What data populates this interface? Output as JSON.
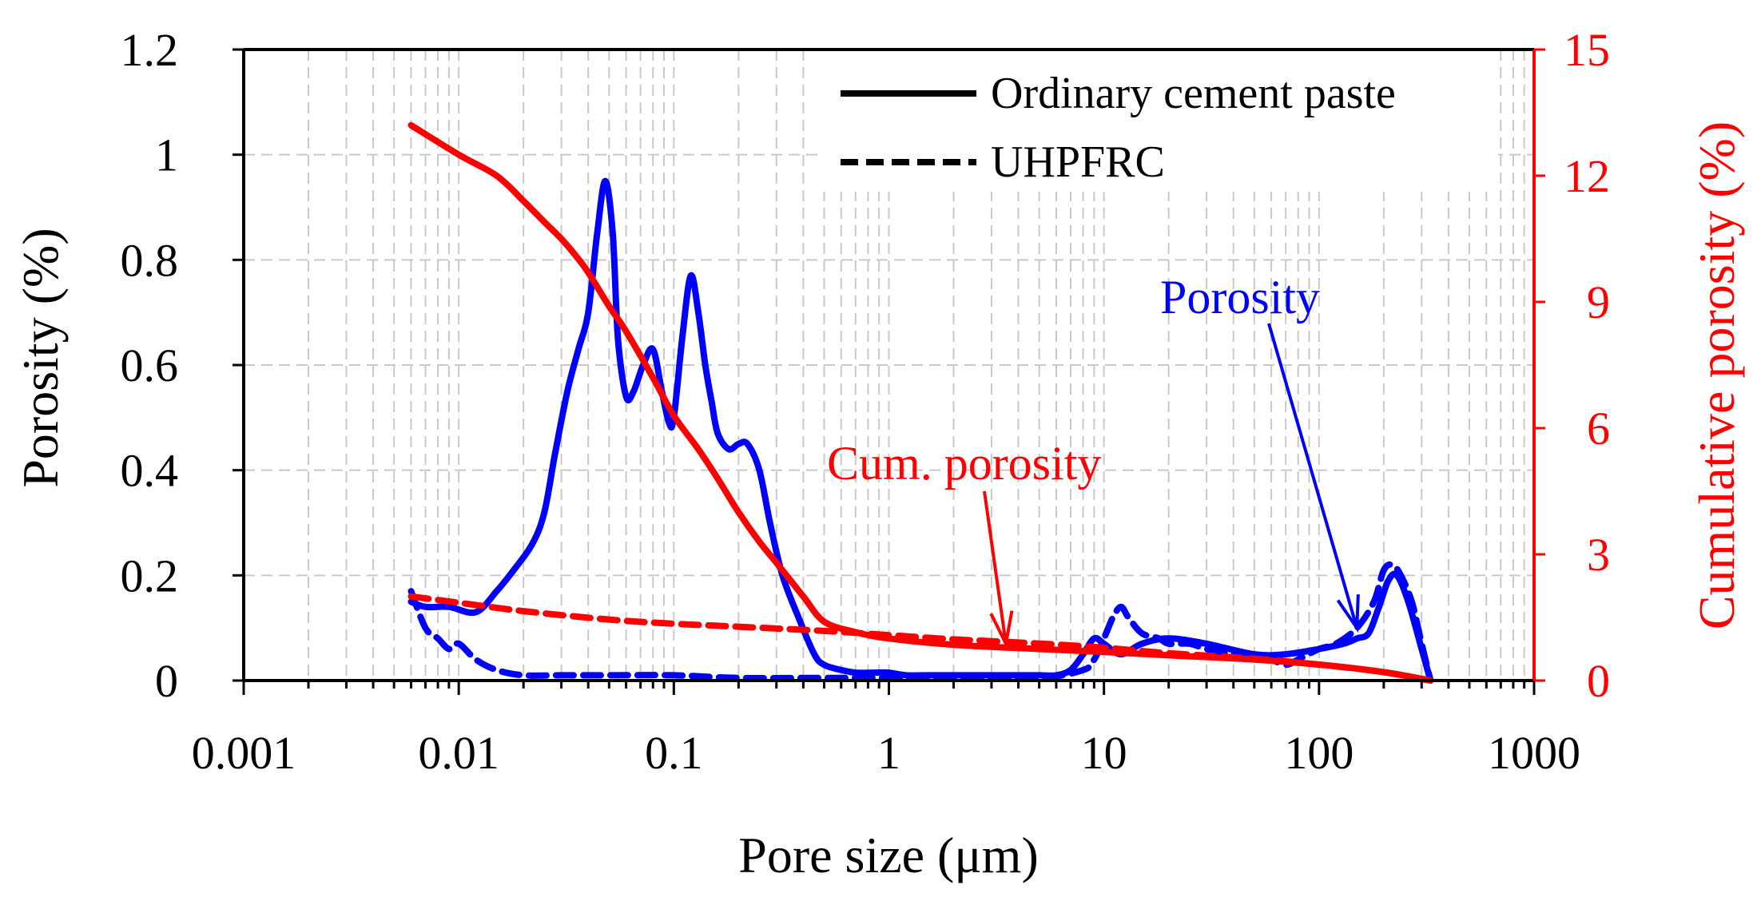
{
  "chart_data": {
    "type": "line",
    "xlabel": "Pore size (μm)",
    "ylabel": "Porosity (%)",
    "y2label": "Cumulative porosity (%)",
    "xscale": "log",
    "xlim": [
      0.001,
      1000
    ],
    "ylim": [
      0,
      1.2
    ],
    "y2lim": [
      0,
      15
    ],
    "xticks": [
      0.001,
      0.01,
      0.1,
      1,
      10,
      100,
      1000
    ],
    "xticklabels": [
      "0.001",
      "0.01",
      "0.1",
      "1",
      "10",
      "100",
      "1000"
    ],
    "yticks": [
      0,
      0.2,
      0.4,
      0.6,
      0.8,
      1,
      1.2
    ],
    "yticklabels": [
      "0",
      "0.2",
      "0.4",
      "0.6",
      "0.8",
      "1",
      "1.2"
    ],
    "y2ticks": [
      0,
      3,
      6,
      9,
      12,
      15
    ],
    "y2ticklabels": [
      "0",
      "3",
      "6",
      "9",
      "12",
      "15"
    ],
    "grid": true,
    "legend": {
      "position": "top-right",
      "entries": [
        {
          "label": "Ordinary cement paste",
          "style": "solid"
        },
        {
          "label": "UHPFRC",
          "style": "dashed"
        }
      ]
    },
    "annotations": [
      {
        "text": "Porosity",
        "color": "#0000ff",
        "points_to": [
          150,
          0.1
        ]
      },
      {
        "text": "Cum. porosity",
        "color": "#ff0000",
        "points_to": [
          3.5,
          0.07
        ]
      }
    ],
    "colors": {
      "porosity": "#0000ff",
      "cumulative": "#ff0000",
      "axis": "#000000",
      "y2axis": "#ff0000",
      "grid": "#c8c8c8"
    },
    "series": [
      {
        "name": "Porosity - Ordinary cement paste",
        "axis": "left",
        "color": "#0000ff",
        "style": "solid",
        "x": [
          0.006,
          0.007,
          0.009,
          0.012,
          0.015,
          0.018,
          0.022,
          0.025,
          0.028,
          0.032,
          0.036,
          0.04,
          0.044,
          0.048,
          0.052,
          0.055,
          0.06,
          0.065,
          0.072,
          0.08,
          0.088,
          0.095,
          0.1,
          0.11,
          0.12,
          0.13,
          0.14,
          0.15,
          0.16,
          0.18,
          0.2,
          0.22,
          0.25,
          0.28,
          0.32,
          0.38,
          0.45,
          0.5,
          0.6,
          0.7,
          0.85,
          1,
          1.2,
          1.5,
          2,
          2.5,
          3,
          4,
          5,
          6,
          7,
          8,
          9,
          10,
          12,
          15,
          20,
          30,
          50,
          70,
          100,
          130,
          150,
          170,
          190,
          210,
          230,
          260,
          300,
          330
        ],
        "y": [
          0.15,
          0.14,
          0.14,
          0.13,
          0.17,
          0.21,
          0.26,
          0.32,
          0.43,
          0.55,
          0.63,
          0.7,
          0.85,
          0.95,
          0.85,
          0.65,
          0.54,
          0.55,
          0.6,
          0.63,
          0.55,
          0.49,
          0.5,
          0.66,
          0.77,
          0.7,
          0.6,
          0.53,
          0.47,
          0.44,
          0.45,
          0.45,
          0.4,
          0.3,
          0.2,
          0.12,
          0.05,
          0.03,
          0.02,
          0.015,
          0.015,
          0.015,
          0.01,
          0.01,
          0.01,
          0.01,
          0.01,
          0.01,
          0.01,
          0.01,
          0.02,
          0.05,
          0.08,
          0.07,
          0.05,
          0.07,
          0.08,
          0.07,
          0.05,
          0.05,
          0.06,
          0.07,
          0.08,
          0.09,
          0.14,
          0.19,
          0.2,
          0.15,
          0.06,
          0.0
        ]
      },
      {
        "name": "Porosity - UHPFRC",
        "axis": "left",
        "color": "#0000ff",
        "style": "dashed",
        "x": [
          0.006,
          0.007,
          0.008,
          0.009,
          0.01,
          0.012,
          0.015,
          0.02,
          0.03,
          0.05,
          0.1,
          0.2,
          0.5,
          1,
          2,
          5,
          8,
          9,
          10,
          11,
          12,
          13,
          15,
          18,
          20,
          25,
          30,
          40,
          50,
          60,
          70,
          80,
          100,
          120,
          150,
          180,
          200,
          220,
          240,
          270,
          300,
          330
        ],
        "y": [
          0.17,
          0.1,
          0.08,
          0.06,
          0.07,
          0.04,
          0.02,
          0.01,
          0.01,
          0.01,
          0.01,
          0.005,
          0.005,
          0.005,
          0.005,
          0.005,
          0.02,
          0.04,
          0.08,
          0.12,
          0.14,
          0.12,
          0.09,
          0.08,
          0.07,
          0.07,
          0.06,
          0.05,
          0.05,
          0.04,
          0.03,
          0.04,
          0.06,
          0.07,
          0.1,
          0.15,
          0.21,
          0.22,
          0.2,
          0.15,
          0.07,
          0.0
        ]
      },
      {
        "name": "Cum. porosity - Ordinary cement paste",
        "axis": "right",
        "color": "#ff0000",
        "style": "solid",
        "x": [
          0.006,
          0.01,
          0.015,
          0.02,
          0.025,
          0.03,
          0.035,
          0.04,
          0.05,
          0.06,
          0.08,
          0.1,
          0.13,
          0.16,
          0.2,
          0.25,
          0.3,
          0.4,
          0.5,
          0.7,
          1,
          2,
          5,
          10,
          20,
          50,
          100,
          200,
          330
        ],
        "y": [
          13.2,
          12.5,
          12.0,
          11.4,
          10.9,
          10.5,
          10.1,
          9.7,
          8.9,
          8.3,
          7.2,
          6.3,
          5.5,
          4.8,
          4.0,
          3.3,
          2.8,
          2.0,
          1.4,
          1.15,
          1.0,
          0.85,
          0.75,
          0.68,
          0.6,
          0.5,
          0.38,
          0.2,
          0.0
        ]
      },
      {
        "name": "Cum. porosity - UHPFRC",
        "axis": "right",
        "color": "#ff0000",
        "style": "dashed",
        "x": [
          0.006,
          0.01,
          0.02,
          0.05,
          0.1,
          0.2,
          0.5,
          1,
          2,
          5,
          10,
          20,
          50,
          100,
          200,
          330
        ],
        "y": [
          2.0,
          1.85,
          1.65,
          1.45,
          1.35,
          1.28,
          1.18,
          1.08,
          0.98,
          0.88,
          0.78,
          0.65,
          0.52,
          0.38,
          0.2,
          0.0
        ]
      }
    ]
  }
}
